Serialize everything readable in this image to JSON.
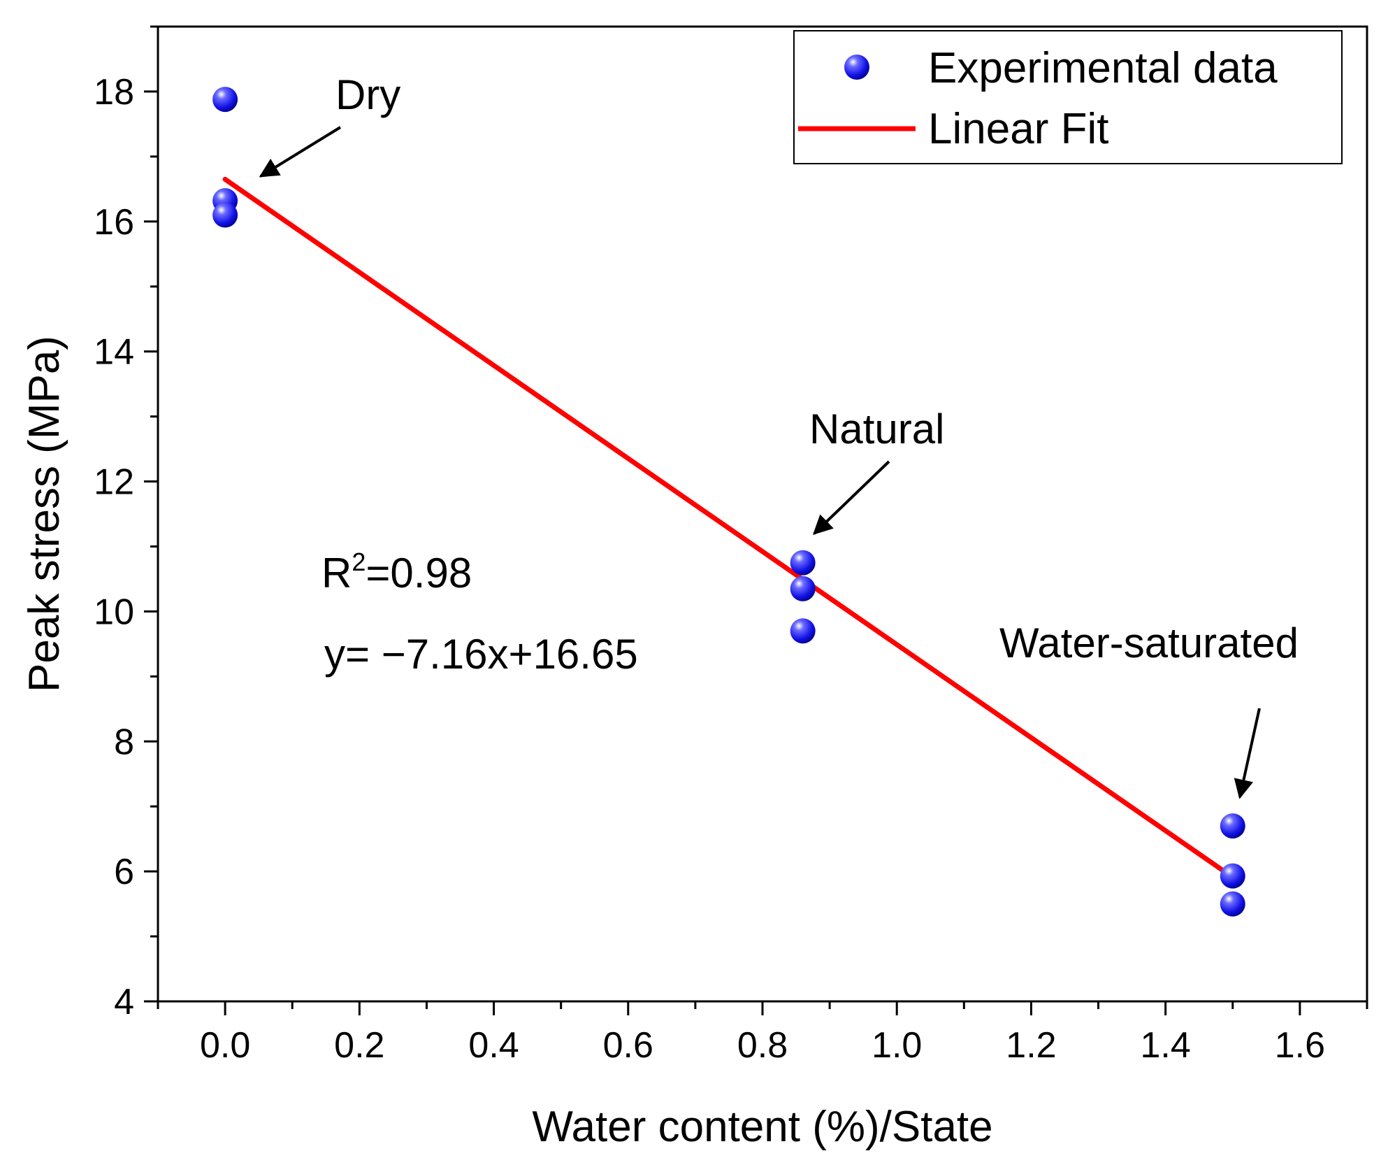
{
  "chart_data": {
    "type": "scatter",
    "xlabel": "Water content (%)/State",
    "ylabel": "Peak stress (MPa)",
    "xlim": [
      -0.1,
      1.7
    ],
    "ylim": [
      4,
      19
    ],
    "xticks": [
      "0.0",
      "0.2",
      "0.4",
      "0.6",
      "0.8",
      "1.0",
      "1.2",
      "1.4",
      "1.6"
    ],
    "yticks": [
      "4",
      "6",
      "8",
      "10",
      "12",
      "14",
      "16",
      "18"
    ],
    "series": [
      {
        "name": "Experimental data",
        "kind": "scatter",
        "color": "#1a1aff",
        "points": [
          {
            "x": 0,
            "y": 17.88
          },
          {
            "x": 0,
            "y": 16.32
          },
          {
            "x": 0,
            "y": 16.1
          },
          {
            "x": 0.86,
            "y": 10.75
          },
          {
            "x": 0.86,
            "y": 10.35
          },
          {
            "x": 0.86,
            "y": 9.7
          },
          {
            "x": 1.5,
            "y": 6.7
          },
          {
            "x": 1.5,
            "y": 5.93
          },
          {
            "x": 1.5,
            "y": 5.5
          }
        ]
      },
      {
        "name": "Linear Fit",
        "kind": "line",
        "color": "#ff0000",
        "slope": -7.16,
        "intercept": 16.65,
        "x_range": [
          0,
          1.5
        ]
      }
    ],
    "annotations": {
      "r2_prefix": "R",
      "r2_sup": "2",
      "r2_value": "=0.98",
      "equation": "y= −7.16x+16.65",
      "dry_label": "Dry",
      "natural_label": "Natural",
      "saturated_label": "Water-saturated"
    },
    "legend": {
      "position": "top-right",
      "entries": [
        "Experimental data",
        "Linear Fit"
      ]
    }
  }
}
